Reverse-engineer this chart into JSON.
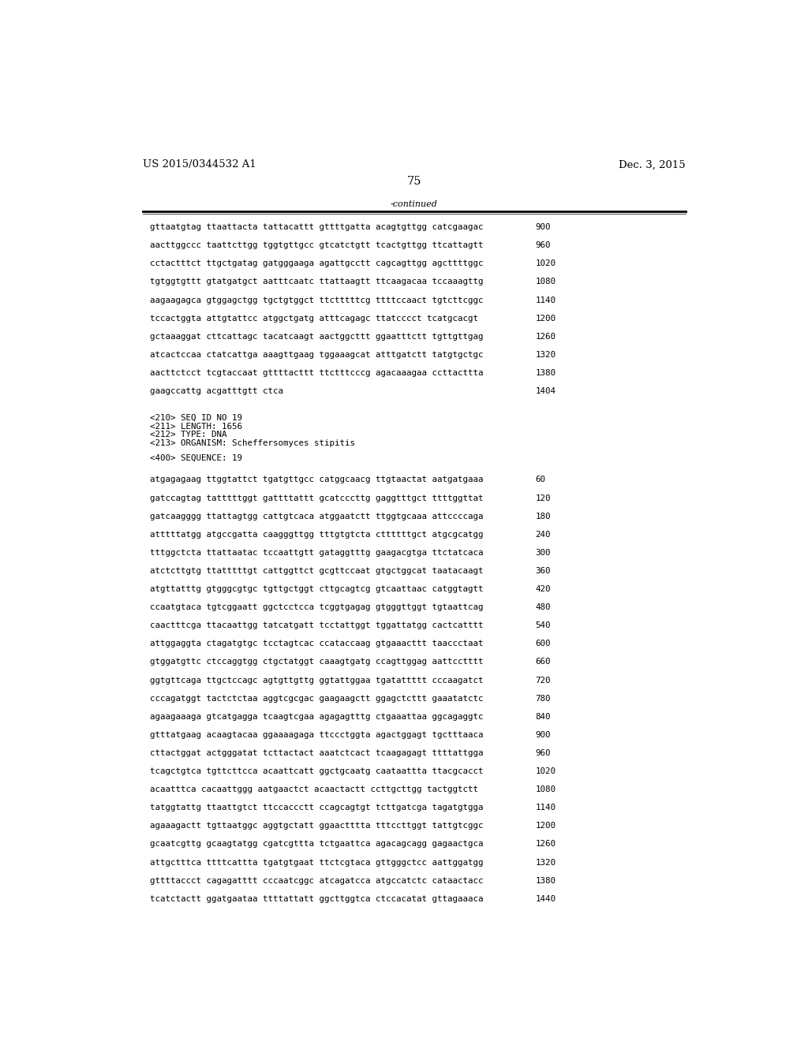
{
  "header_left": "US 2015/0344532 A1",
  "header_right": "Dec. 3, 2015",
  "page_number": "75",
  "continued_label": "-continued",
  "background_color": "#ffffff",
  "text_color": "#000000",
  "font_size_header": 9.5,
  "font_size_body": 8.0,
  "font_size_page": 10.5,
  "font_size_mono": 7.8,
  "sequence_lines_top": [
    [
      "gttaatgtag ttaattacta tattacattt gttttgatta acagtgttgg catcgaagac",
      "900"
    ],
    [
      "aacttggccc taattcttgg tggtgttgcc gtcatctgtt tcactgttgg ttcattagtt",
      "960"
    ],
    [
      "cctactttct ttgctgatag gatgggaaga agattgcctt cagcagttgg agcttttggc",
      "1020"
    ],
    [
      "tgtggtgttt gtatgatgct aatttcaatc ttattaagtt ttcaagacaa tccaaagttg",
      "1080"
    ],
    [
      "aagaagagca gtggagctgg tgctgtggct ttctttttcg ttttccaact tgtcttcggc",
      "1140"
    ],
    [
      "tccactggta attgtattcc atggctgatg atttcagagc ttatcccct tcatgcacgt",
      "1200"
    ],
    [
      "gctaaaggat cttcattagc tacatcaagt aactggcttt ggaatttctt tgttgttgag",
      "1260"
    ],
    [
      "atcactccaa ctatcattga aaagttgaag tggaaagcat atttgatctt tatgtgctgc",
      "1320"
    ],
    [
      "aacttctcct tcgtaccaat gttttacttt ttctttcccg agacaaagaa ccttacttta",
      "1380"
    ],
    [
      "gaagccattg acgatttgtt ctca",
      "1404"
    ]
  ],
  "metadata_lines": [
    "<210> SEQ ID NO 19",
    "<211> LENGTH: 1656",
    "<212> TYPE: DNA",
    "<213> ORGANISM: Scheffersomyces stipitis"
  ],
  "sequence400_label": "<400> SEQUENCE: 19",
  "sequence_lines_bottom": [
    [
      "atgagagaag ttggtattct tgatgttgcc catggcaacg ttgtaactat aatgatgaaa",
      "60"
    ],
    [
      "gatccagtag tatttttggt gattttattt gcatcccttg gaggtttgct ttttggttat",
      "120"
    ],
    [
      "gatcaagggg ttattagtgg cattgtcaca atggaatctt ttggtgcaaa attccccaga",
      "180"
    ],
    [
      "atttttatgg atgccgatta caagggttgg tttgtgtcta cttttttgct atgcgcatgg",
      "240"
    ],
    [
      "tttggctcta ttattaatac tccaattgtt gataggtttg gaagacgtga ttctatcaca",
      "300"
    ],
    [
      "atctcttgtg ttatttttgt cattggttct gcgttccaat gtgctggcat taatacaagt",
      "360"
    ],
    [
      "atgttatttg gtgggcgtgc tgttgctggt cttgcagtcg gtcaattaac catggtagtt",
      "420"
    ],
    [
      "ccaatgtaca tgtcggaatt ggctcctcca tcggtgagag gtgggttggt tgtaattcag",
      "480"
    ],
    [
      "caactttcga ttacaattgg tatcatgatt tcctattggt tggattatgg cactcatttt",
      "540"
    ],
    [
      "attggaggta ctagatgtgc tcctagtcac ccataccaag gtgaaacttt taaccctaat",
      "600"
    ],
    [
      "gtggatgttc ctccaggtgg ctgctatggt caaagtgatg ccagttggag aattcctttt",
      "660"
    ],
    [
      "ggtgttcaga ttgctccagc agtgttgttg ggtattggaa tgatattttt cccaagatct",
      "720"
    ],
    [
      "cccagatggt tactctctaa aggtcgcgac gaagaagctt ggagctcttt gaaatatctc",
      "780"
    ],
    [
      "agaagaaaga gtcatgagga tcaagtcgaa agagagtttg ctgaaattaa ggcagaggtc",
      "840"
    ],
    [
      "gtttatgaag acaagtacaa ggaaaagaga ttccctggta agactggagt tgctttaaca",
      "900"
    ],
    [
      "cttactggat actgggatat tcttactact aaatctcact tcaagagagt ttttattgga",
      "960"
    ],
    [
      "tcagctgtca tgttcttcca acaattcatt ggctgcaatg caataattta ttacgcacct",
      "1020"
    ],
    [
      "acaatttca cacaattggg aatgaactct acaactactt ccttgcttgg tactggtctt",
      "1080"
    ],
    [
      "tatggtattg ttaattgtct ttccaccctt ccagcagtgt tcttgatcga tagatgtgga",
      "1140"
    ],
    [
      "agaaagactt tgttaatggc aggtgctatt ggaactttta tttccttggt tattgtcggc",
      "1200"
    ],
    [
      "gcaatcgttg gcaagtatgg cgatcgttta tctgaattca agacagcagg gagaactgca",
      "1260"
    ],
    [
      "attgctttca ttttcattta tgatgtgaat ttctcgtaca gttgggctcc aattggatgg",
      "1320"
    ],
    [
      "gttttaccct cagagatttt cccaatcggc atcagatcca atgccatctc cataactacc",
      "1380"
    ],
    [
      "tcatctactt ggatgaataa ttttattatt ggcttggtca ctccacatat gttagaaaca",
      "1440"
    ]
  ]
}
